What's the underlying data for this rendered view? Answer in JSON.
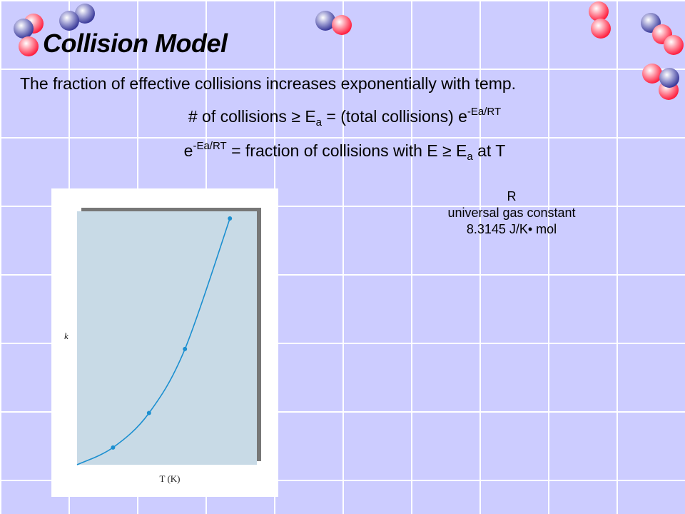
{
  "slide": {
    "title": "Collision Model",
    "statement": "The fraction of effective collisions increases exponentially with temp.",
    "equation1": {
      "lhs": "# of collisions",
      "ge_symbol": "≥",
      "ea_base": "E",
      "ea_sub": "a",
      "rhs": "= (total collisions) e",
      "exp": "-Ea/RT"
    },
    "equation2": {
      "base": "e",
      "exp": "-Ea/RT",
      "text": "= fraction of collisions with E",
      "ge_symbol": "≥",
      "ea_base": "E",
      "ea_sub": "a",
      "tail": "at T"
    },
    "gas_constant": {
      "symbol": "R",
      "name": "universal gas constant",
      "value": "8.3145 J/K• mol"
    }
  },
  "chart_data": {
    "type": "line",
    "xlabel": "T (K)",
    "ylabel": "k",
    "xlim": [
      0,
      1
    ],
    "ylim": [
      0,
      1
    ],
    "grid": false,
    "series": [
      {
        "color": "#1b8fd0",
        "curve": "exponential",
        "x": [
          0,
          0.2,
          0.4,
          0.6,
          0.85
        ],
        "y": [
          0,
          0.07,
          0.21,
          0.47,
          1.0
        ],
        "marked_points": [
          1,
          2,
          3,
          4
        ]
      }
    ],
    "plot_background": "#c8dae6",
    "shadow_color": "#777777"
  },
  "molecules": {
    "red_color": "#ff2a4a",
    "blue_color": "#4444a8"
  }
}
